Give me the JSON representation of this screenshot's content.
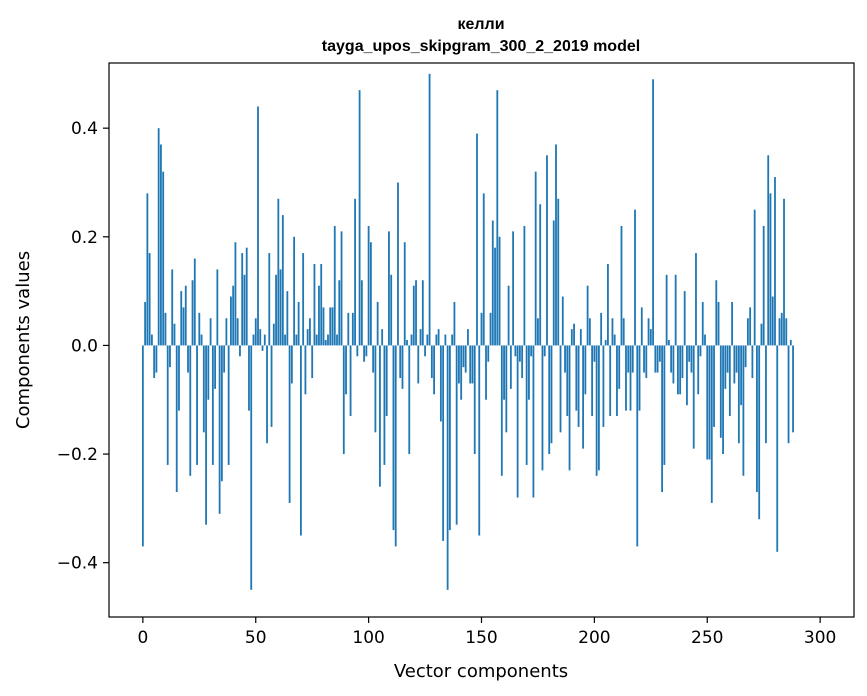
{
  "chart_data": {
    "type": "bar",
    "title_line1": "келли",
    "title_line2": "tayga_upos_skipgram_300_2_2019 model",
    "xlabel": "Vector components",
    "ylabel": "Components values",
    "xlim": [
      -15,
      315
    ],
    "ylim": [
      -0.5,
      0.52
    ],
    "xticks": [
      0,
      50,
      100,
      150,
      200,
      250,
      300
    ],
    "xtick_labels": [
      "0",
      "50",
      "100",
      "150",
      "200",
      "250",
      "300"
    ],
    "yticks": [
      -0.4,
      -0.2,
      0.0,
      0.2,
      0.4
    ],
    "ytick_labels": [
      "−0.4",
      "−0.2",
      "0.0",
      "0.2",
      "0.4"
    ],
    "bar_color": "#1f77b4",
    "values": [
      -0.37,
      0.08,
      0.28,
      0.17,
      0.02,
      -0.06,
      -0.05,
      0.4,
      0.37,
      0.32,
      0.06,
      -0.22,
      -0.04,
      0.14,
      0.04,
      -0.27,
      -0.12,
      0.1,
      0.07,
      0.11,
      -0.05,
      -0.24,
      0.12,
      0.16,
      -0.22,
      0.06,
      0.02,
      -0.16,
      -0.33,
      -0.1,
      0.05,
      -0.22,
      -0.08,
      0.14,
      -0.31,
      -0.25,
      -0.05,
      0.05,
      -0.22,
      0.09,
      0.11,
      0.19,
      0.05,
      -0.02,
      0.17,
      0.13,
      0.18,
      -0.12,
      -0.45,
      0.02,
      0.05,
      0.44,
      0.03,
      -0.01,
      0.02,
      -0.18,
      0.17,
      -0.15,
      0.04,
      0.13,
      0.27,
      0.14,
      0.24,
      0.02,
      0.1,
      -0.29,
      -0.07,
      0.2,
      0.02,
      0.08,
      -0.35,
      0.17,
      -0.09,
      0.03,
      0.05,
      -0.06,
      0.15,
      0.02,
      0.11,
      0.15,
      0.07,
      0.01,
      0.02,
      0.07,
      0.07,
      0.22,
      0.02,
      0.12,
      0.21,
      -0.2,
      -0.09,
      0.06,
      -0.13,
      0.06,
      0.27,
      -0.02,
      0.47,
      0.12,
      -0.03,
      -0.02,
      0.22,
      0.19,
      -0.05,
      -0.16,
      0.08,
      -0.26,
      0.03,
      -0.22,
      -0.13,
      0.21,
      0.13,
      -0.34,
      -0.37,
      0.3,
      -0.06,
      -0.08,
      0.19,
      0.01,
      -0.2,
      0.02,
      0.11,
      0.12,
      -0.07,
      0.03,
      0.12,
      -0.02,
      0.02,
      0.5,
      -0.06,
      -0.09,
      0.02,
      0.03,
      -0.14,
      -0.36,
      0.02,
      -0.45,
      -0.34,
      0.02,
      0.08,
      -0.33,
      -0.07,
      -0.1,
      -0.04,
      -0.05,
      0.03,
      -0.07,
      -0.07,
      -0.2,
      0.39,
      -0.35,
      0.06,
      0.28,
      -0.1,
      -0.03,
      0.06,
      0.23,
      0.18,
      0.47,
      0.2,
      -0.24,
      -0.1,
      -0.16,
      0.11,
      -0.08,
      0.21,
      -0.02,
      -0.28,
      -0.03,
      -0.06,
      0.22,
      -0.22,
      -0.1,
      -0.02,
      -0.28,
      0.32,
      0.05,
      0.26,
      -0.23,
      -0.02,
      0.35,
      -0.2,
      -0.18,
      0.23,
      0.37,
      0.27,
      -0.16,
      0.09,
      -0.05,
      -0.13,
      -0.23,
      0.03,
      0.04,
      -0.12,
      -0.15,
      0.03,
      -0.19,
      -0.09,
      0.11,
      0.05,
      -0.13,
      -0.03,
      -0.24,
      -0.23,
      0.06,
      -0.15,
      0.01,
      0.15,
      -0.13,
      0.05,
      0.02,
      -0.13,
      -0.08,
      0.22,
      0.05,
      -0.12,
      -0.05,
      -0.12,
      -0.05,
      0.25,
      -0.37,
      -0.12,
      0.07,
      -0.05,
      -0.06,
      0.05,
      0.03,
      0.49,
      -0.05,
      -0.05,
      -0.03,
      -0.27,
      -0.22,
      0.13,
      0.01,
      -0.05,
      -0.07,
      0.13,
      -0.09,
      -0.09,
      -0.06,
      0.1,
      -0.11,
      -0.03,
      -0.05,
      -0.19,
      0.17,
      -0.09,
      -0.02,
      0.08,
      0.02,
      -0.21,
      -0.21,
      -0.29,
      -0.15,
      0.12,
      0.08,
      -0.17,
      -0.2,
      -0.08,
      -0.05,
      -0.13,
      0.08,
      -0.07,
      -0.05,
      -0.18,
      -0.11,
      -0.24,
      -0.04,
      0.05,
      0.07,
      -0.06,
      0.25,
      -0.27,
      -0.32,
      0.04,
      0.22,
      -0.18,
      0.35,
      0.28,
      0.09,
      0.31,
      -0.38,
      0.05,
      0.06,
      0.27,
      0.05,
      -0.18,
      0.01,
      -0.16
    ]
  }
}
